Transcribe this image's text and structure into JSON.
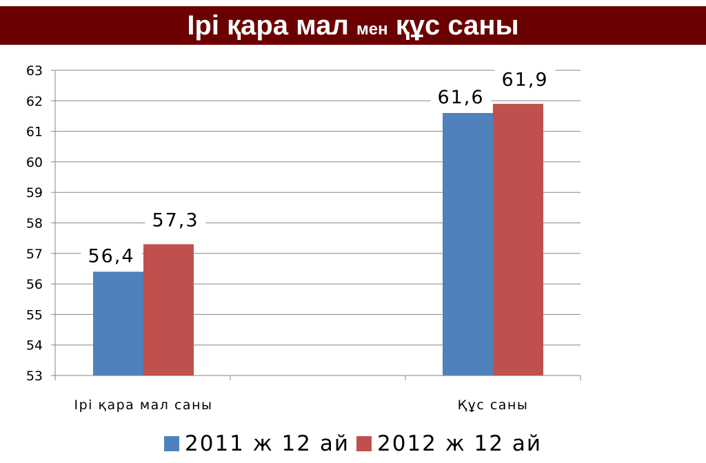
{
  "slide": {
    "title_part1": "Ірі қара мал",
    "title_small": "мен",
    "title_part2": "құс саны"
  },
  "chart_data": {
    "type": "bar",
    "categories": [
      "Ірі қара мал саны",
      "Құс саны"
    ],
    "series": [
      {
        "name": "2011 ж 12 ай",
        "values": [
          56.4,
          61.6
        ],
        "labels": [
          "56,4",
          "61,6"
        ],
        "color": "#4f81bd"
      },
      {
        "name": "2012 ж 12 ай",
        "values": [
          57.3,
          61.9
        ],
        "labels": [
          "57,3",
          "61,9"
        ],
        "color": "#c0504d"
      }
    ],
    "ylim": [
      53,
      63
    ],
    "yticks": [
      53,
      54,
      55,
      56,
      57,
      58,
      59,
      60,
      61,
      62,
      63
    ],
    "grid": true,
    "legend": "bottom"
  }
}
